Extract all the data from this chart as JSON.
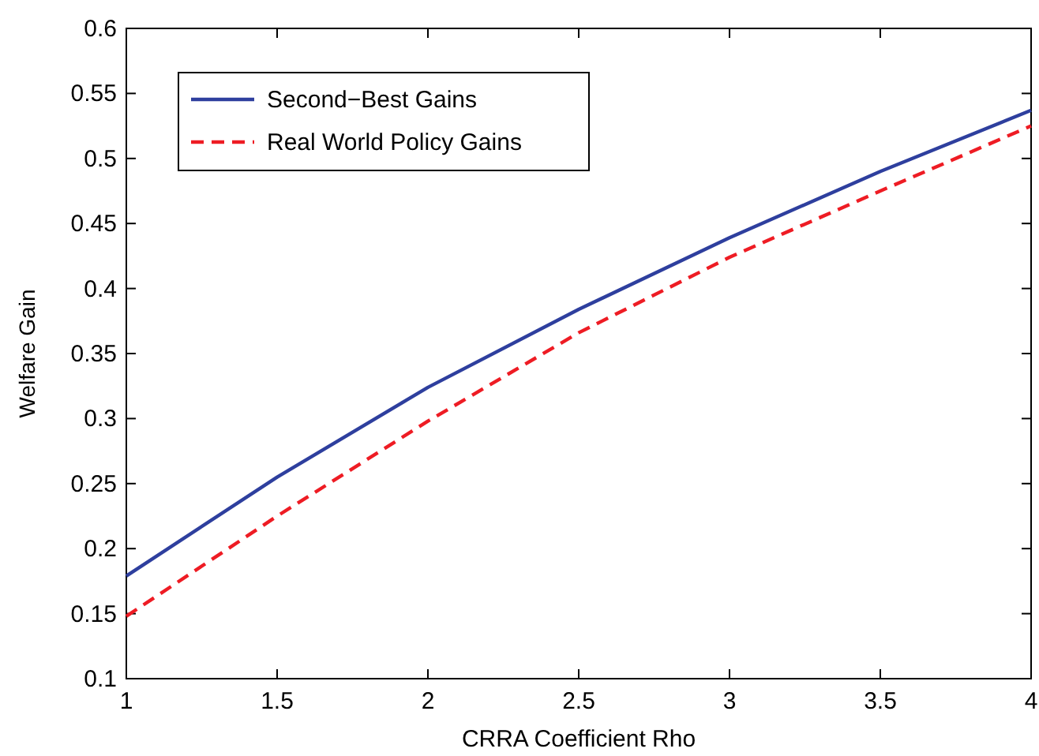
{
  "chart_data": {
    "type": "line",
    "xlabel": "CRRA Coefficient Rho",
    "ylabel": "Welfare Gain",
    "x": [
      1,
      1.5,
      2,
      2.5,
      3,
      3.5,
      4
    ],
    "series": [
      {
        "name": "Second−Best Gains",
        "color": "#2e3f9e",
        "values": [
          0.179,
          0.255,
          0.324,
          0.384,
          0.439,
          0.49,
          0.537
        ],
        "line_style": "solid"
      },
      {
        "name": "Real World Policy Gains",
        "color": "#ee1c24",
        "values": [
          0.148,
          0.225,
          0.298,
          0.366,
          0.424,
          0.475,
          0.525
        ],
        "line_style": "dashed"
      }
    ],
    "xlim": [
      1,
      4
    ],
    "xticks": [
      1,
      1.5,
      2,
      2.5,
      3,
      3.5,
      4
    ],
    "ylim": [
      0.1,
      0.6
    ],
    "yticks": [
      0.1,
      0.15,
      0.2,
      0.25,
      0.3,
      0.35,
      0.4,
      0.45,
      0.5,
      0.55,
      0.6
    ],
    "legend": "top left",
    "grid": false,
    "marker": "none"
  }
}
